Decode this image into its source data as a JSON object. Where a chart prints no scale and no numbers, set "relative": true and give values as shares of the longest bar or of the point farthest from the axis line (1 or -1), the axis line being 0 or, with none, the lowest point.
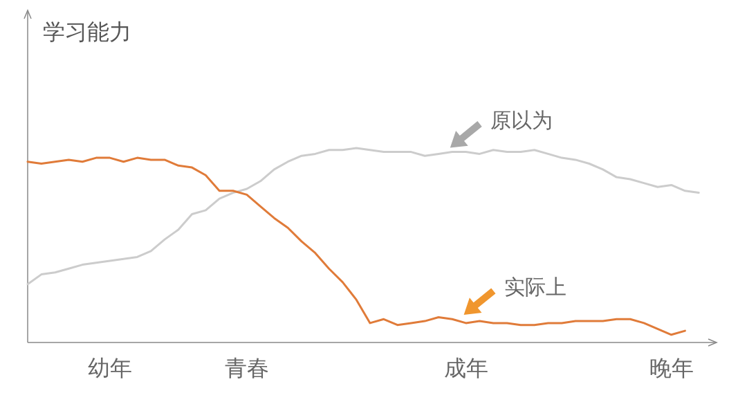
{
  "chart_data": {
    "type": "line",
    "relative": true,
    "ylabel": "学习能力",
    "categories": [
      null,
      null,
      null,
      null,
      null,
      null,
      "幼年",
      null,
      null,
      null,
      null,
      null,
      null,
      null,
      null,
      null,
      "青春",
      null,
      null,
      null,
      null,
      null,
      null,
      null,
      null,
      null,
      null,
      null,
      null,
      null,
      null,
      null,
      "成年",
      null,
      null,
      null,
      null,
      null,
      null,
      null,
      null,
      null,
      null,
      null,
      null,
      null,
      null,
      "晚年",
      null,
      null,
      null
    ],
    "series": [
      {
        "name": "原以为",
        "color": "#cccccc",
        "values": [
          0.3,
          0.35,
          0.36,
          0.38,
          0.4,
          0.41,
          0.42,
          0.43,
          0.44,
          0.47,
          0.53,
          0.58,
          0.66,
          0.68,
          0.74,
          0.77,
          0.79,
          0.83,
          0.89,
          0.93,
          0.96,
          0.97,
          0.99,
          0.99,
          1.0,
          0.99,
          0.98,
          0.98,
          0.98,
          0.96,
          0.97,
          0.98,
          0.98,
          0.97,
          0.99,
          0.98,
          0.98,
          0.99,
          0.97,
          0.95,
          0.94,
          0.92,
          0.89,
          0.85,
          0.84,
          0.82,
          0.8,
          0.81,
          0.78,
          0.77,
          null
        ]
      },
      {
        "name": "实际上",
        "color": "#e07b39",
        "values": [
          0.93,
          0.92,
          0.93,
          0.94,
          0.93,
          0.95,
          0.95,
          0.93,
          0.95,
          0.94,
          0.94,
          0.91,
          0.9,
          0.86,
          0.78,
          0.78,
          0.76,
          0.7,
          0.64,
          0.59,
          0.52,
          0.46,
          0.38,
          0.31,
          0.22,
          0.1,
          0.12,
          0.09,
          0.1,
          0.11,
          0.13,
          0.12,
          0.1,
          0.11,
          0.1,
          0.1,
          0.09,
          0.09,
          0.1,
          0.1,
          0.11,
          0.11,
          0.11,
          0.12,
          0.12,
          0.1,
          0.07,
          0.04,
          0.06,
          null,
          null
        ]
      }
    ]
  }
}
